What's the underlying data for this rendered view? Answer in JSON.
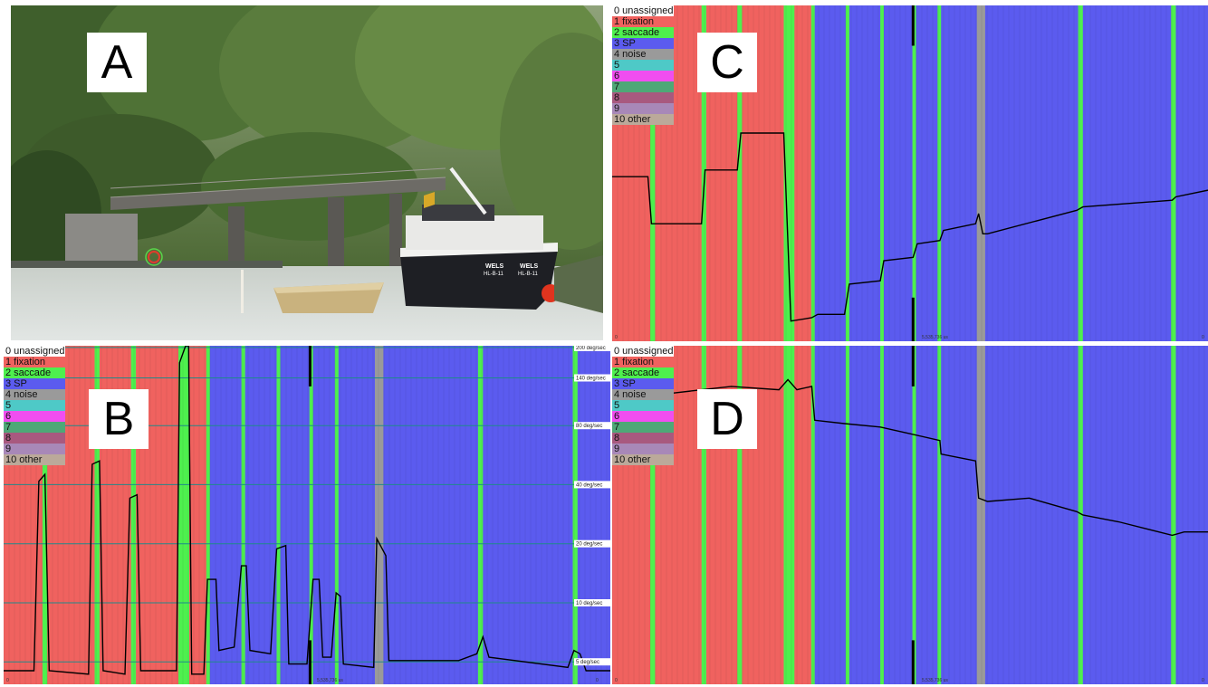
{
  "panels": {
    "A": {
      "letter": "A"
    },
    "B": {
      "letter": "B"
    },
    "C": {
      "letter": "C"
    },
    "D": {
      "letter": "D"
    }
  },
  "boat": {
    "name": "WELS",
    "reg": "HL-B-11"
  },
  "legend": [
    {
      "label": "0 unassigned",
      "color": "#ffffff"
    },
    {
      "label": "1 fixation",
      "color": "#f0625f"
    },
    {
      "label": "2 saccade",
      "color": "#4ef04e"
    },
    {
      "label": "3 SP",
      "color": "#5b5bef"
    },
    {
      "label": "4 noise",
      "color": "#9a9a9a"
    },
    {
      "label": "5",
      "color": "#4ec9c7"
    },
    {
      "label": "6",
      "color": "#f04ef0"
    },
    {
      "label": "7",
      "color": "#4ea877"
    },
    {
      "label": "8",
      "color": "#a8597f"
    },
    {
      "label": "9",
      "color": "#a888b8"
    },
    {
      "label": "10 other",
      "color": "#bba99a"
    }
  ],
  "timeline": {
    "start_label": "0",
    "mid_label": "5,535,736 us",
    "end_label": "0",
    "segments": [
      {
        "cls": 1,
        "start": 0.0,
        "end": 0.064
      },
      {
        "cls": 2,
        "start": 0.064,
        "end": 0.072
      },
      {
        "cls": 1,
        "start": 0.072,
        "end": 0.15
      },
      {
        "cls": 2,
        "start": 0.15,
        "end": 0.158
      },
      {
        "cls": 1,
        "start": 0.158,
        "end": 0.21
      },
      {
        "cls": 2,
        "start": 0.21,
        "end": 0.218
      },
      {
        "cls": 1,
        "start": 0.218,
        "end": 0.288
      },
      {
        "cls": 2,
        "start": 0.288,
        "end": 0.306
      },
      {
        "cls": 1,
        "start": 0.306,
        "end": 0.334
      },
      {
        "cls": 2,
        "start": 0.334,
        "end": 0.34
      },
      {
        "cls": 3,
        "start": 0.34,
        "end": 0.392
      },
      {
        "cls": 2,
        "start": 0.392,
        "end": 0.398
      },
      {
        "cls": 3,
        "start": 0.398,
        "end": 0.45
      },
      {
        "cls": 2,
        "start": 0.45,
        "end": 0.456
      },
      {
        "cls": 3,
        "start": 0.456,
        "end": 0.504
      },
      {
        "cls": 2,
        "start": 0.504,
        "end": 0.51
      },
      {
        "cls": 3,
        "start": 0.51,
        "end": 0.546
      },
      {
        "cls": 2,
        "start": 0.546,
        "end": 0.552
      },
      {
        "cls": 3,
        "start": 0.552,
        "end": 0.612
      },
      {
        "cls": 4,
        "start": 0.612,
        "end": 0.626
      },
      {
        "cls": 3,
        "start": 0.626,
        "end": 0.782
      },
      {
        "cls": 2,
        "start": 0.782,
        "end": 0.79
      },
      {
        "cls": 3,
        "start": 0.79,
        "end": 0.938
      },
      {
        "cls": 2,
        "start": 0.938,
        "end": 0.946
      },
      {
        "cls": 3,
        "start": 0.946,
        "end": 1.0
      }
    ],
    "cursor": 0.505
  },
  "velocity_axis": {
    "unit": "deg/sec",
    "ticks": [
      {
        "label": "200 deg/sec",
        "value": 200
      },
      {
        "label": "140 deg/sec",
        "value": 140
      },
      {
        "label": "80 deg/sec",
        "value": 80
      },
      {
        "label": "40 deg/sec",
        "value": 40
      },
      {
        "label": "20 deg/sec",
        "value": 20
      },
      {
        "label": "10 deg/sec",
        "value": 10
      },
      {
        "label": "5 deg/sec",
        "value": 5
      }
    ]
  },
  "traces": {
    "B": [
      [
        0.0,
        0.96
      ],
      [
        0.05,
        0.96
      ],
      [
        0.058,
        0.4
      ],
      [
        0.068,
        0.38
      ],
      [
        0.075,
        0.96
      ],
      [
        0.14,
        0.97
      ],
      [
        0.146,
        0.35
      ],
      [
        0.158,
        0.34
      ],
      [
        0.164,
        0.96
      ],
      [
        0.2,
        0.97
      ],
      [
        0.208,
        0.45
      ],
      [
        0.22,
        0.44
      ],
      [
        0.226,
        0.96
      ],
      [
        0.285,
        0.96
      ],
      [
        0.29,
        0.05
      ],
      [
        0.3,
        0.0
      ],
      [
        0.305,
        0.0
      ],
      [
        0.31,
        0.97
      ],
      [
        0.33,
        0.97
      ],
      [
        0.336,
        0.69
      ],
      [
        0.35,
        0.69
      ],
      [
        0.355,
        0.9
      ],
      [
        0.38,
        0.89
      ],
      [
        0.392,
        0.65
      ],
      [
        0.4,
        0.65
      ],
      [
        0.406,
        0.9
      ],
      [
        0.44,
        0.91
      ],
      [
        0.45,
        0.6
      ],
      [
        0.465,
        0.59
      ],
      [
        0.47,
        0.94
      ],
      [
        0.5,
        0.94
      ],
      [
        0.51,
        0.69
      ],
      [
        0.52,
        0.69
      ],
      [
        0.526,
        0.92
      ],
      [
        0.54,
        0.92
      ],
      [
        0.548,
        0.73
      ],
      [
        0.555,
        0.74
      ],
      [
        0.56,
        0.94
      ],
      [
        0.61,
        0.95
      ],
      [
        0.615,
        0.57
      ],
      [
        0.63,
        0.62
      ],
      [
        0.635,
        0.93
      ],
      [
        0.75,
        0.93
      ],
      [
        0.78,
        0.91
      ],
      [
        0.79,
        0.86
      ],
      [
        0.8,
        0.92
      ],
      [
        0.93,
        0.95
      ],
      [
        0.94,
        0.9
      ],
      [
        0.95,
        0.91
      ],
      [
        0.96,
        0.96
      ],
      [
        1.0,
        0.96
      ]
    ],
    "C": [
      [
        0.0,
        0.51
      ],
      [
        0.06,
        0.51
      ],
      [
        0.066,
        0.65
      ],
      [
        0.15,
        0.65
      ],
      [
        0.156,
        0.49
      ],
      [
        0.21,
        0.49
      ],
      [
        0.216,
        0.38
      ],
      [
        0.288,
        0.38
      ],
      [
        0.3,
        0.94
      ],
      [
        0.335,
        0.93
      ],
      [
        0.345,
        0.92
      ],
      [
        0.39,
        0.92
      ],
      [
        0.398,
        0.83
      ],
      [
        0.45,
        0.82
      ],
      [
        0.456,
        0.76
      ],
      [
        0.505,
        0.75
      ],
      [
        0.512,
        0.71
      ],
      [
        0.55,
        0.7
      ],
      [
        0.556,
        0.67
      ],
      [
        0.61,
        0.65
      ],
      [
        0.615,
        0.62
      ],
      [
        0.622,
        0.68
      ],
      [
        0.63,
        0.68
      ],
      [
        0.78,
        0.61
      ],
      [
        0.79,
        0.6
      ],
      [
        0.94,
        0.58
      ],
      [
        0.946,
        0.57
      ],
      [
        1.0,
        0.55
      ]
    ],
    "D": [
      [
        0.0,
        0.12
      ],
      [
        0.1,
        0.14
      ],
      [
        0.2,
        0.12
      ],
      [
        0.28,
        0.13
      ],
      [
        0.295,
        0.1
      ],
      [
        0.31,
        0.13
      ],
      [
        0.335,
        0.12
      ],
      [
        0.34,
        0.22
      ],
      [
        0.39,
        0.23
      ],
      [
        0.45,
        0.24
      ],
      [
        0.5,
        0.26
      ],
      [
        0.55,
        0.28
      ],
      [
        0.552,
        0.32
      ],
      [
        0.61,
        0.34
      ],
      [
        0.615,
        0.45
      ],
      [
        0.63,
        0.46
      ],
      [
        0.7,
        0.45
      ],
      [
        0.78,
        0.49
      ],
      [
        0.79,
        0.5
      ],
      [
        0.85,
        0.52
      ],
      [
        0.94,
        0.56
      ],
      [
        0.96,
        0.55
      ],
      [
        1.0,
        0.55
      ]
    ]
  }
}
